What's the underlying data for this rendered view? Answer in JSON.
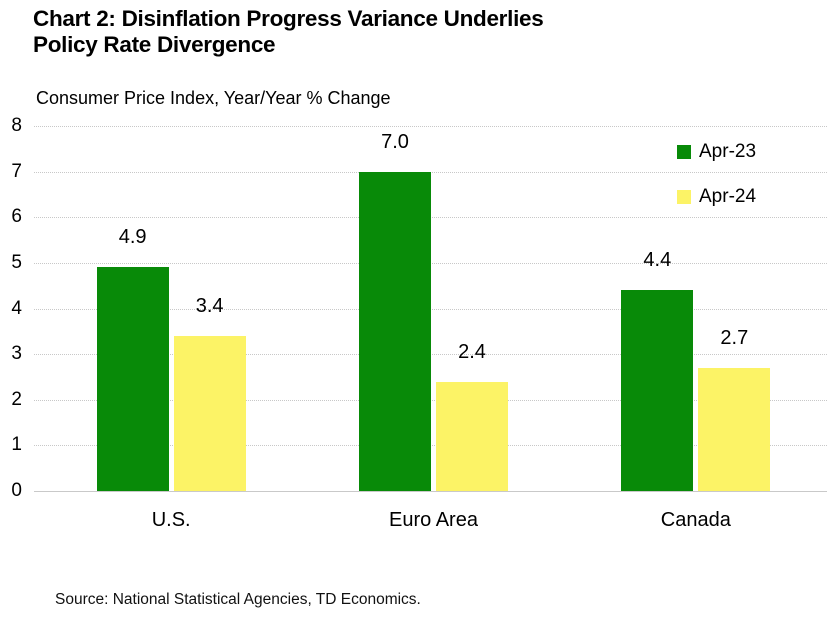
{
  "header": {
    "title_line1": "Chart 2: Disinflation Progress Variance Underlies",
    "title_line2": "Policy Rate Divergence",
    "subtitle": "Consumer Price Index, Year/Year % Change"
  },
  "chart_data": {
    "type": "bar",
    "title": "Chart 2: Disinflation Progress Variance Underlies Policy Rate Divergence",
    "subtitle": "Consumer Price Index, Year/Year % Change",
    "categories": [
      "U.S.",
      "Euro Area",
      "Canada"
    ],
    "series": [
      {
        "name": "Apr-23",
        "color": "#088A08",
        "values": [
          4.9,
          7.0,
          4.4
        ]
      },
      {
        "name": "Apr-24",
        "color": "#FCF366",
        "values": [
          3.4,
          2.4,
          2.7
        ]
      }
    ],
    "xlabel": "",
    "ylabel": "",
    "ylim": [
      0,
      8
    ],
    "ytick_interval": 1,
    "grid": true,
    "gridline_style": "dotted",
    "data_labels": true,
    "data_label_decimals": 1,
    "legend_position": "top-right"
  },
  "colors": {
    "grid": "#c8c8c8",
    "text": "#000000",
    "background": "#ffffff"
  },
  "footer": {
    "source": "Source: National Statistical Agencies, TD Economics."
  }
}
